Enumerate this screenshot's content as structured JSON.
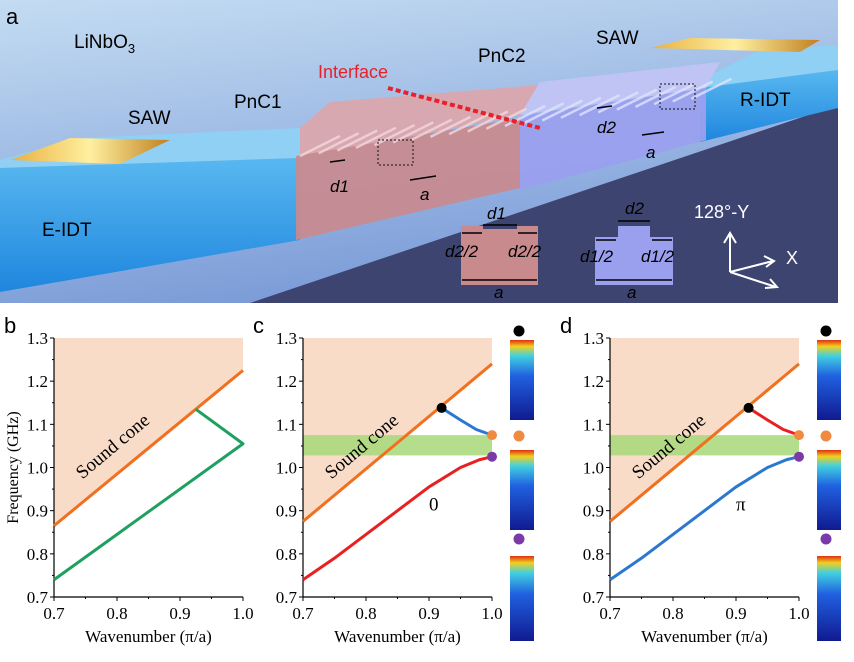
{
  "panel_a": {
    "letter": "a",
    "material": "LiNbO",
    "material_sub": "3",
    "saw_left": "SAW",
    "saw_right": "SAW",
    "pnc1": "PnC1",
    "pnc2": "PnC2",
    "interface": "Interface",
    "e_idt": "E-IDT",
    "r_idt": "R-IDT",
    "d1": "d1",
    "d2": "d2",
    "a": "a",
    "half_d2": "d2/2",
    "half_d1": "d1/2",
    "axis_y": "128°-Y",
    "axis_x": "X",
    "colors": {
      "interface": "#e8202a",
      "pnc1": "#c98a8e",
      "pnc2": "#9aa0ee"
    }
  },
  "chart_data": [
    {
      "letter": "b",
      "type": "line",
      "xlabel": "Wavenumber (π/a)",
      "ylabel": "Frequency (GHz)",
      "xlim": [
        0.7,
        1.0
      ],
      "ylim": [
        0.7,
        1.3
      ],
      "xticks": [
        "0.7",
        "0.8",
        "0.9",
        "1.0"
      ],
      "yticks": [
        "0.7",
        "0.8",
        "0.9",
        "1.0",
        "1.1",
        "1.2",
        "1.3"
      ],
      "cone_label": "Sound cone",
      "cone": [
        [
          0.7,
          0.865
        ],
        [
          1.0,
          1.225
        ]
      ],
      "series": [
        {
          "name": "sound-line",
          "color": "#f07020",
          "points": [
            [
              0.7,
              0.865
            ],
            [
              1.0,
              1.225
            ]
          ]
        },
        {
          "name": "folded-band",
          "color": "#20a060",
          "points": [
            [
              0.7,
              0.74
            ],
            [
              1.0,
              1.055
            ],
            [
              0.925,
              1.135
            ]
          ]
        }
      ]
    },
    {
      "letter": "c",
      "type": "line",
      "xlabel": "Wavenumber (π/a)",
      "xlim": [
        0.7,
        1.0
      ],
      "ylim": [
        0.7,
        1.3
      ],
      "xticks": [
        "0.7",
        "0.8",
        "0.9",
        "1.0"
      ],
      "yticks": [
        "0.7",
        "0.8",
        "0.9",
        "1.0",
        "1.1",
        "1.2",
        "1.3"
      ],
      "cone_label": "Sound cone",
      "band_label": "0",
      "cone": [
        [
          0.7,
          0.875
        ],
        [
          1.0,
          1.24
        ]
      ],
      "gap": [
        1.028,
        1.075
      ],
      "series": [
        {
          "name": "sound-line",
          "color": "#f07020",
          "points": [
            [
              0.7,
              0.875
            ],
            [
              1.0,
              1.24
            ]
          ]
        },
        {
          "name": "upper-band",
          "color": "#2a78d0",
          "points": [
            [
              0.92,
              1.138
            ],
            [
              0.95,
              1.11
            ],
            [
              0.975,
              1.088
            ],
            [
              1.0,
              1.075
            ]
          ]
        },
        {
          "name": "lower-band",
          "color": "#e82020",
          "points": [
            [
              0.7,
              0.74
            ],
            [
              0.75,
              0.79
            ],
            [
              0.8,
              0.845
            ],
            [
              0.85,
              0.9
            ],
            [
              0.9,
              0.955
            ],
            [
              0.95,
              1.0
            ],
            [
              0.98,
              1.018
            ],
            [
              1.0,
              1.025
            ]
          ]
        }
      ],
      "dots": [
        {
          "color": "#000000",
          "point": [
            0.92,
            1.138
          ]
        },
        {
          "color": "#f08a40",
          "point": [
            1.0,
            1.075
          ]
        },
        {
          "color": "#7a3aa8",
          "point": [
            1.0,
            1.025
          ]
        }
      ]
    },
    {
      "letter": "d",
      "type": "line",
      "xlabel": "Wavenumber (π/a)",
      "xlim": [
        0.7,
        1.0
      ],
      "ylim": [
        0.7,
        1.3
      ],
      "xticks": [
        "0.7",
        "0.8",
        "0.9",
        "1.0"
      ],
      "yticks": [
        "0.7",
        "0.8",
        "0.9",
        "1.0",
        "1.1",
        "1.2",
        "1.3"
      ],
      "cone_label": "Sound cone",
      "band_label": "π",
      "cone": [
        [
          0.7,
          0.875
        ],
        [
          1.0,
          1.24
        ]
      ],
      "gap": [
        1.028,
        1.075
      ],
      "series": [
        {
          "name": "sound-line",
          "color": "#f07020",
          "points": [
            [
              0.7,
              0.875
            ],
            [
              1.0,
              1.24
            ]
          ]
        },
        {
          "name": "upper-band",
          "color": "#e82020",
          "points": [
            [
              0.92,
              1.138
            ],
            [
              0.95,
              1.11
            ],
            [
              0.975,
              1.088
            ],
            [
              1.0,
              1.075
            ]
          ]
        },
        {
          "name": "lower-band",
          "color": "#2a78d0",
          "points": [
            [
              0.7,
              0.74
            ],
            [
              0.75,
              0.79
            ],
            [
              0.8,
              0.845
            ],
            [
              0.85,
              0.9
            ],
            [
              0.9,
              0.955
            ],
            [
              0.95,
              1.0
            ],
            [
              0.98,
              1.018
            ],
            [
              1.0,
              1.025
            ]
          ]
        }
      ],
      "dots": [
        {
          "color": "#000000",
          "point": [
            0.92,
            1.138
          ]
        },
        {
          "color": "#f08a40",
          "point": [
            1.0,
            1.075
          ]
        },
        {
          "color": "#7a3aa8",
          "point": [
            1.0,
            1.025
          ]
        }
      ]
    }
  ]
}
